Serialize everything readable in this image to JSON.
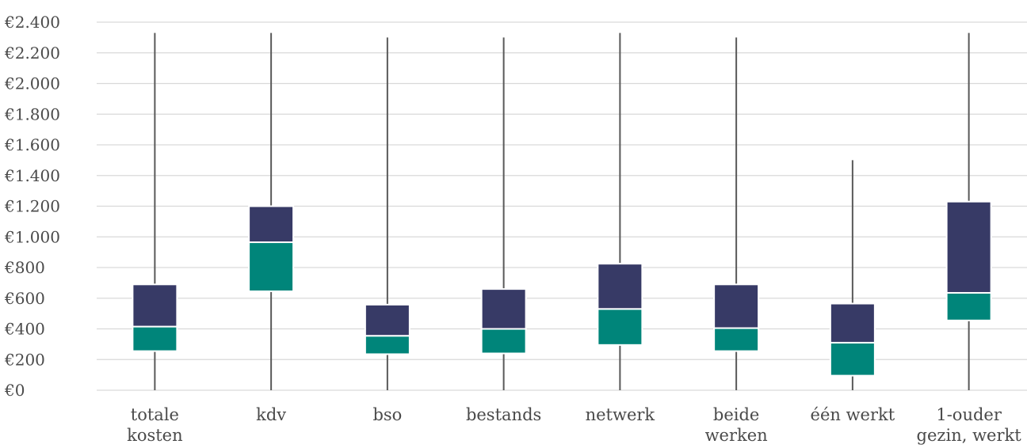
{
  "chart_data": {
    "type": "boxplot",
    "title": "",
    "xlabel": "",
    "ylabel": "",
    "ylim": [
      0,
      2400
    ],
    "y_tick_values": [
      0,
      200,
      400,
      600,
      800,
      1000,
      1200,
      1400,
      1600,
      1800,
      2000,
      2200,
      2400
    ],
    "y_tick_labels": [
      "€0",
      "€200",
      "€400",
      "€600",
      "€800",
      "€1.000",
      "€1.200",
      "€1.400",
      "€1.600",
      "€1.800",
      "€2.000",
      "€2.200",
      "€2.400"
    ],
    "grid": true,
    "legend": "none",
    "colors": {
      "lower_box": "#00857a",
      "upper_box": "#373a66",
      "whisker": "#595959",
      "grid": "#d9d9d9",
      "text": "#4a4a4a"
    },
    "categories": [
      {
        "label_lines": [
          "totale",
          "kosten"
        ],
        "min": 0,
        "q1": 255,
        "median": 415,
        "q3": 690,
        "max": 2330
      },
      {
        "label_lines": [
          "kdv"
        ],
        "min": 0,
        "q1": 645,
        "median": 965,
        "q3": 1200,
        "max": 2330
      },
      {
        "label_lines": [
          "bso"
        ],
        "min": 0,
        "q1": 235,
        "median": 355,
        "q3": 558,
        "max": 2300
      },
      {
        "label_lines": [
          "bestands"
        ],
        "min": 0,
        "q1": 240,
        "median": 400,
        "q3": 660,
        "max": 2300
      },
      {
        "label_lines": [
          "netwerk"
        ],
        "min": 0,
        "q1": 295,
        "median": 530,
        "q3": 825,
        "max": 2330
      },
      {
        "label_lines": [
          "beide",
          "werken"
        ],
        "min": 0,
        "q1": 255,
        "median": 405,
        "q3": 690,
        "max": 2300
      },
      {
        "label_lines": [
          "één werkt"
        ],
        "min": 0,
        "q1": 95,
        "median": 310,
        "q3": 565,
        "max": 1500
      },
      {
        "label_lines": [
          "1-ouder",
          "gezin, werkt"
        ],
        "min": 0,
        "q1": 455,
        "median": 635,
        "q3": 1230,
        "max": 2330
      }
    ]
  }
}
